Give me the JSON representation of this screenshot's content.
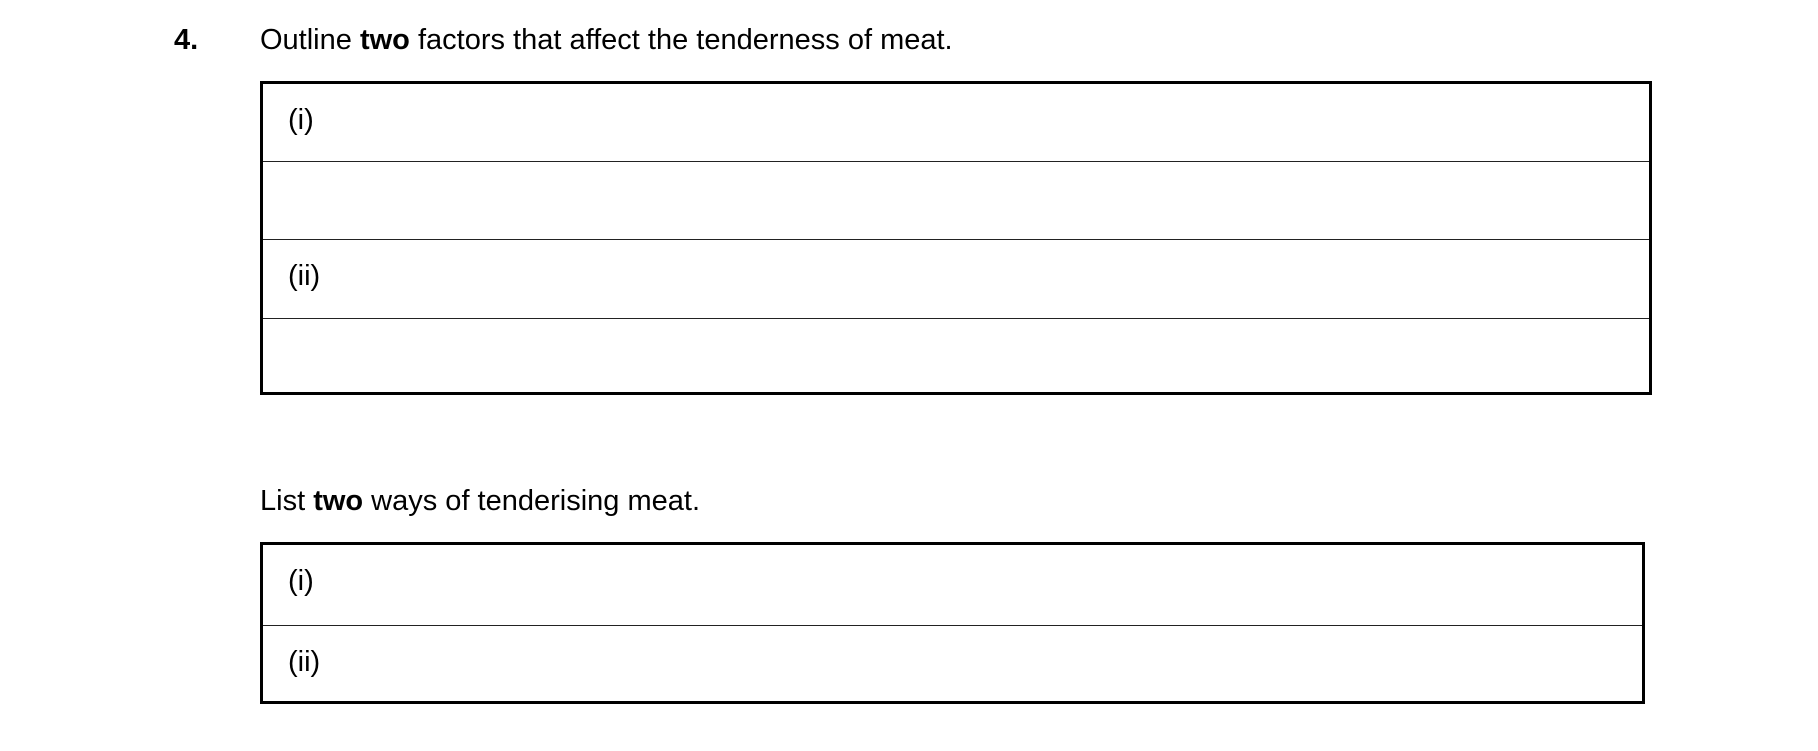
{
  "question": {
    "number": "4.",
    "part_a": {
      "prompt_before": "Outline ",
      "prompt_bold": "two",
      "prompt_after": " factors that affect the tenderness of meat.",
      "rows": [
        "(i)",
        "",
        "(ii)",
        ""
      ]
    },
    "part_b": {
      "prompt_before": "List ",
      "prompt_bold": "two",
      "prompt_after": " ways of tenderising meat.",
      "rows": [
        "(i)",
        "(ii)"
      ]
    }
  }
}
